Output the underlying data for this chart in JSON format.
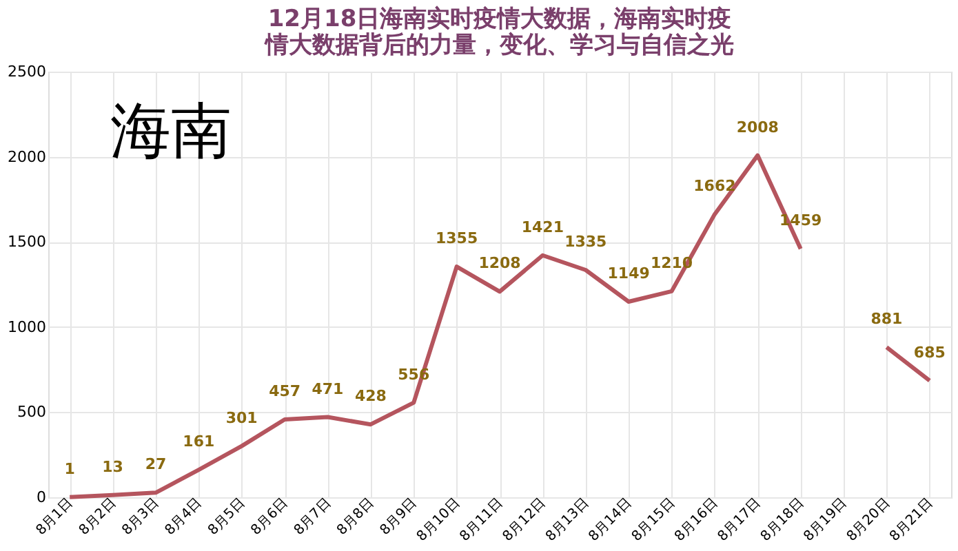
{
  "chart_data": {
    "type": "line",
    "title": "12月18日海南实时疫情大数据，海南实时疫情大数据背后的力量，变化、学习与自信之光",
    "annotations": [
      "海南"
    ],
    "categories": [
      "8月1日",
      "8月2日",
      "8月3日",
      "8月4日",
      "8月5日",
      "8月6日",
      "8月7日",
      "8月8日",
      "8月9日",
      "8月10日",
      "8月11日",
      "8月12日",
      "8月13日",
      "8月14日",
      "8月15日",
      "8月16日",
      "8月17日",
      "8月18日",
      "8月19日",
      "8月20日",
      "8月21日"
    ],
    "series": [
      {
        "color": "#b5555e",
        "values": [
          1,
          13,
          27,
          161,
          301,
          457,
          471,
          428,
          556,
          1355,
          1208,
          1421,
          1335,
          1149,
          1210,
          1662,
          2008,
          1459,
          null,
          881,
          685
        ]
      }
    ],
    "ylim": [
      0,
      2500
    ],
    "yticks": [
      0,
      500,
      1000,
      1500,
      2000,
      2500
    ],
    "grid": true,
    "data_labels": true,
    "marker": "none",
    "line_style": "solid"
  }
}
